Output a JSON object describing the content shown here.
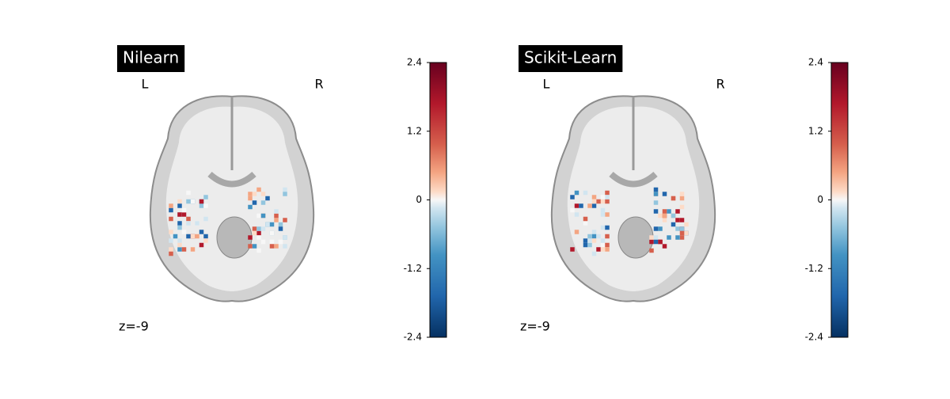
{
  "panels": [
    {
      "title": "Nilearn",
      "left": "L",
      "right": "R",
      "slice": "z=-9",
      "colorbar": {
        "ylim": [
          -2.4,
          2.4
        ],
        "ticks": [
          2.4,
          1.2,
          0,
          -1.2,
          -2.4
        ]
      }
    },
    {
      "title": "Scikit-Learn",
      "left": "L",
      "right": "R",
      "slice": "z=-9",
      "colorbar": {
        "ylim": [
          -2.4,
          2.4
        ],
        "ticks": [
          2.4,
          1.2,
          0,
          -1.2,
          -2.4
        ]
      }
    }
  ]
}
